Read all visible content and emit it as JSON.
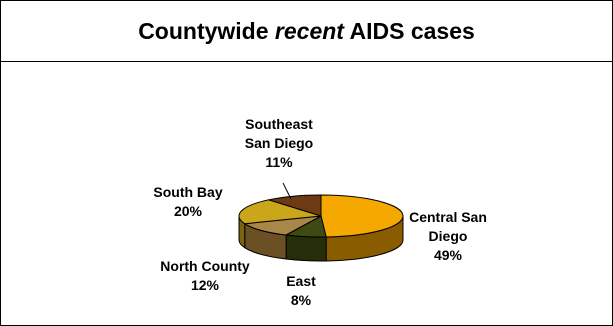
{
  "chart_data": {
    "type": "pie",
    "title": {
      "before": "Countywide ",
      "emphasis": "recent",
      "after": " AIDS cases"
    },
    "slices": [
      {
        "name": "Central San Diego",
        "label_lines": [
          "Central San",
          "Diego"
        ],
        "percent": 49,
        "percent_label": "49%",
        "color": "#f5a800",
        "side_color": "#8a5c00"
      },
      {
        "name": "East",
        "label_lines": [
          "East"
        ],
        "percent": 8,
        "percent_label": "8%",
        "color": "#3f4a12",
        "side_color": "#262d09"
      },
      {
        "name": "North County",
        "label_lines": [
          "North County"
        ],
        "percent": 12,
        "percent_label": "12%",
        "color": "#a88748",
        "side_color": "#6a5024"
      },
      {
        "name": "South Bay",
        "label_lines": [
          "South Bay"
        ],
        "percent": 20,
        "percent_label": "20%",
        "color": "#c9a61a",
        "side_color": "#7a640c"
      },
      {
        "name": "Southeast San Diego",
        "label_lines": [
          "Southeast",
          "San Diego"
        ],
        "percent": 11,
        "percent_label": "11%",
        "color": "#6e3a14",
        "side_color": "#40200a"
      }
    ],
    "style": "3d-pie"
  }
}
